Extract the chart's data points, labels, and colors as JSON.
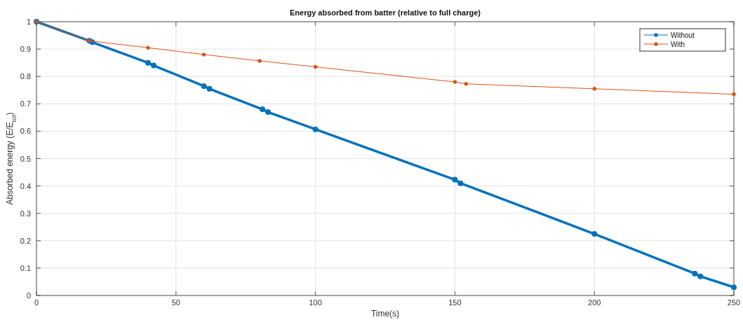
{
  "chart_data": {
    "type": "line",
    "title": "Energy absorbed from batter (relative to full charge)",
    "xlabel": "Time(s)",
    "ylabel": "Absorbed energy (E/E$_{tot}$)",
    "xlim": [
      0,
      250
    ],
    "xticks": [
      0,
      50,
      100,
      150,
      200,
      250
    ],
    "ylim": [
      0,
      1
    ],
    "yticks": [
      0,
      0.1,
      0.2,
      0.3,
      0.4,
      0.5,
      0.6,
      0.7,
      0.8,
      0.9,
      1
    ],
    "grid": true,
    "legend": "top right",
    "marker": "circle",
    "line_style": "solid",
    "series": [
      {
        "name": "Without",
        "color": "#0072bd",
        "x": [
          0,
          19,
          20,
          40,
          42,
          60,
          62,
          81,
          83,
          100,
          150,
          152,
          200,
          236,
          238,
          250
        ],
        "values": [
          1,
          0.93,
          0.925,
          0.85,
          0.84,
          0.765,
          0.755,
          0.68,
          0.67,
          0.607,
          0.423,
          0.41,
          0.225,
          0.08,
          0.07,
          0.03
        ]
      },
      {
        "name": "With",
        "color": "#d95319",
        "x": [
          0,
          19,
          40,
          60,
          80,
          100,
          150,
          154,
          200,
          250
        ],
        "values": [
          1,
          0.93,
          0.905,
          0.88,
          0.857,
          0.835,
          0.78,
          0.773,
          0.755,
          0.735
        ]
      }
    ]
  }
}
